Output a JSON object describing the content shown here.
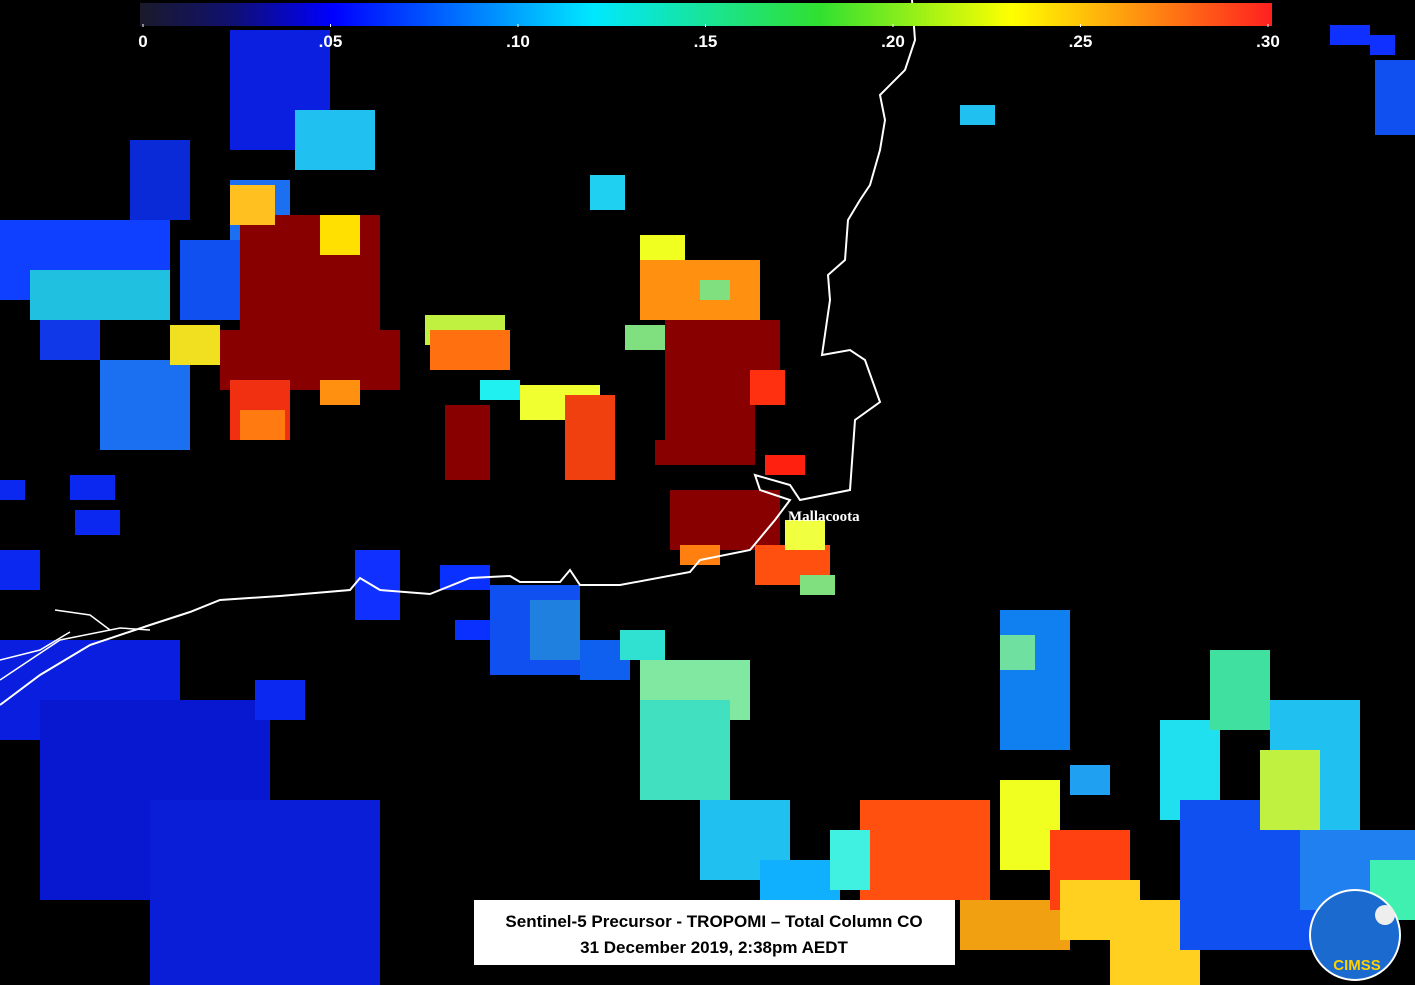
{
  "colorbar": {
    "lim": [
      0,
      0.3
    ],
    "ticks": [
      0,
      {
        "value": 0.05,
        "label": ".05"
      },
      {
        "value": 0.1,
        "label": ".10"
      },
      {
        "value": 0.15,
        "label": ".15"
      },
      {
        "value": 0.2,
        "label": ".20"
      },
      {
        "value": 0.25,
        "label": ".25"
      },
      {
        "value": 0.3,
        "label": ".30"
      }
    ]
  },
  "place_label": "Mallacoota",
  "caption": {
    "line1": "Sentinel-5 Precursor  - TROPOMI – Total Column  CO",
    "line2": "31 December 2019, 2:38pm AEDT"
  },
  "logo": "CIMSS"
}
